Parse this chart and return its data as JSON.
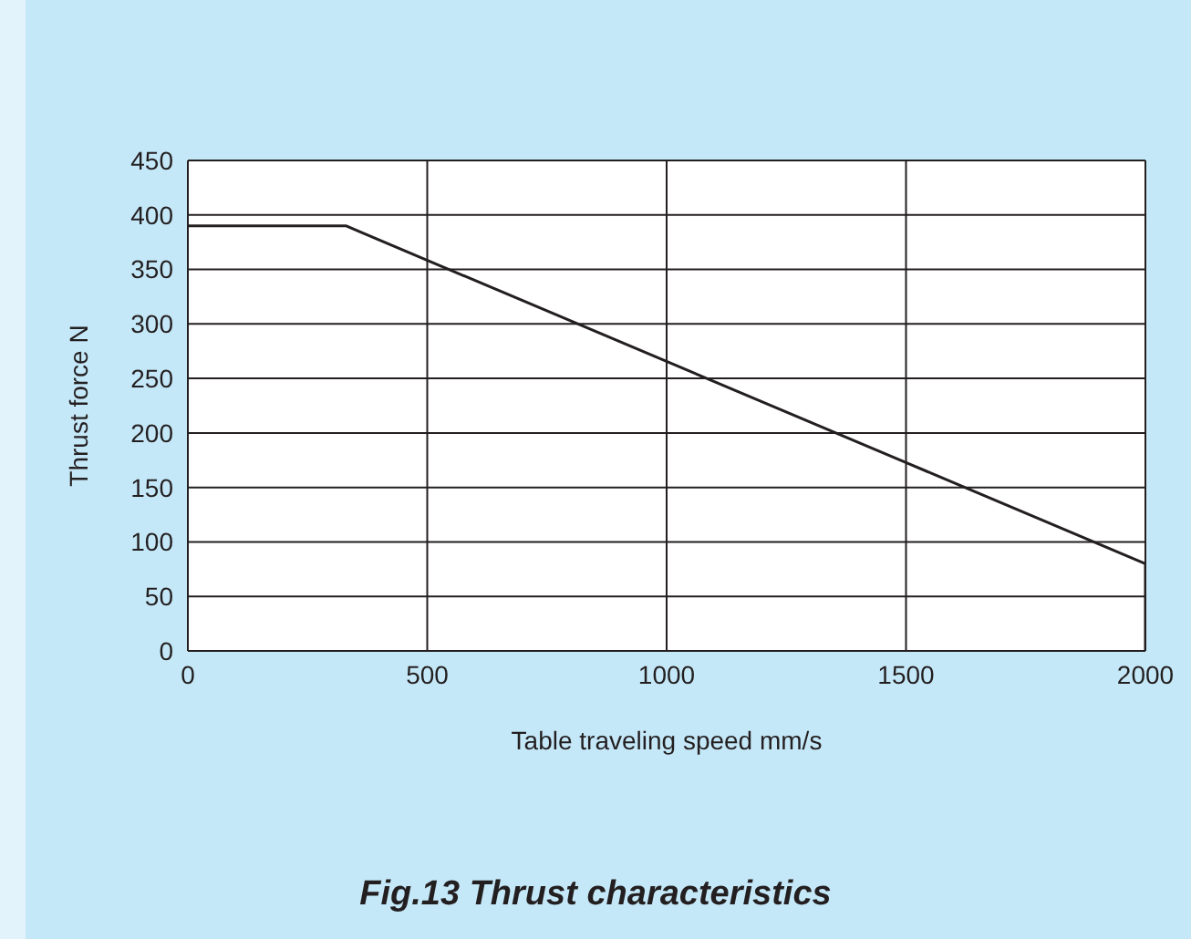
{
  "chart_data": {
    "type": "line",
    "title": "Fig.13  Thrust characteristics",
    "xlabel": "Table traveling speed   mm/s",
    "ylabel": "Thrust force  N",
    "x": [
      0,
      330,
      2000,
      2000
    ],
    "series": [
      {
        "color": "#231f20",
        "values": [
          390,
          390,
          80,
          0
        ]
      }
    ],
    "xlim": [
      0,
      2000
    ],
    "xticks": [
      0,
      500,
      1000,
      1500,
      2000
    ],
    "ylim": [
      0,
      450
    ],
    "yticks": [
      0,
      50,
      100,
      150,
      200,
      250,
      300,
      350,
      400,
      450
    ],
    "grid": true,
    "marker": "none",
    "line_style": "solid"
  }
}
